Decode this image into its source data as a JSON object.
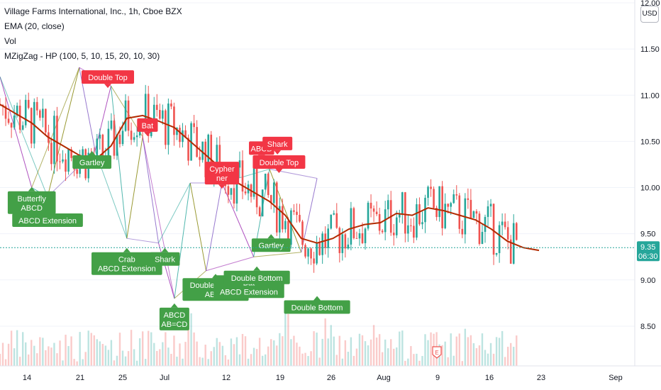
{
  "legend": {
    "symbol": "Village Farms International, Inc., 1h, Cboe BZX",
    "ema": "EMA (20, close)",
    "vol": "Vol",
    "zigzag": "MZigZag - HP (100, 5, 10, 15, 20, 10, 30)"
  },
  "currency": "USD",
  "colors": {
    "up": "#26a69a",
    "down": "#ef5350",
    "ema": "#b22a00",
    "pattern_bull": "#43a047",
    "pattern_bear": "#f23645"
  },
  "chart_data": {
    "type": "candlestick",
    "y_axis": {
      "min": 8.3,
      "max": 12.0,
      "ticks": [
        "12.00",
        "11.50",
        "11.00",
        "10.50",
        "10.00",
        "9.50",
        "9.00",
        "8.50"
      ]
    },
    "x_axis": {
      "ticks": [
        "14",
        "21",
        "25",
        "Jul",
        "12",
        "19",
        "26",
        "Aug",
        "9",
        "16",
        "23",
        "Sep"
      ]
    },
    "last_price": {
      "value": "9.35",
      "countdown": "06:30"
    },
    "ema_path": [
      [
        0,
        10.9
      ],
      [
        0.5,
        10.85
      ],
      [
        1,
        10.8
      ],
      [
        2,
        10.7
      ],
      [
        3,
        10.55
      ],
      [
        4,
        10.45
      ],
      [
        5,
        10.35
      ],
      [
        6,
        10.3
      ],
      [
        7,
        10.45
      ],
      [
        8,
        10.75
      ],
      [
        9,
        10.78
      ],
      [
        10,
        10.72
      ],
      [
        11,
        10.65
      ],
      [
        12,
        10.5
      ],
      [
        13,
        10.35
      ],
      [
        14,
        10.2
      ],
      [
        15,
        10.05
      ],
      [
        16,
        9.95
      ],
      [
        17,
        9.85
      ],
      [
        18,
        9.7
      ],
      [
        19,
        9.45
      ],
      [
        20,
        9.4
      ],
      [
        21,
        9.45
      ],
      [
        22,
        9.55
      ],
      [
        23,
        9.6
      ],
      [
        24,
        9.62
      ],
      [
        25,
        9.72
      ],
      [
        26,
        9.7
      ],
      [
        27,
        9.78
      ],
      [
        28,
        9.75
      ],
      [
        29,
        9.7
      ],
      [
        30,
        9.65
      ],
      [
        31,
        9.55
      ],
      [
        32,
        9.42
      ],
      [
        33,
        9.35
      ],
      [
        34,
        9.32
      ]
    ],
    "zigzag_points": [
      [
        0,
        11.2
      ],
      [
        2,
        10.0
      ],
      [
        3,
        9.9
      ],
      [
        5,
        11.3
      ],
      [
        6,
        10.4
      ],
      [
        7,
        11.1
      ],
      [
        8,
        9.45
      ],
      [
        9,
        10.55
      ],
      [
        10,
        9.4
      ],
      [
        11,
        8.8
      ],
      [
        12,
        10.05
      ],
      [
        13,
        9.1
      ],
      [
        14,
        10.05
      ],
      [
        16,
        9.25
      ],
      [
        17,
        10.2
      ],
      [
        19,
        9.3
      ],
      [
        20,
        10.1
      ]
    ],
    "pattern_labels": [
      {
        "lines": [
          "Butterfly",
          "ABCD"
        ],
        "kind": "bull",
        "x": 2.0,
        "y": 9.96
      },
      {
        "lines": [
          "ABCD Extension"
        ],
        "kind": "bull",
        "x": 3.0,
        "y": 9.72
      },
      {
        "lines": [
          "Gartley"
        ],
        "kind": "bull",
        "x": 5.8,
        "y": 10.35
      },
      {
        "lines": [
          "Double Top"
        ],
        "kind": "bear",
        "x": 6.8,
        "y": 11.27
      },
      {
        "lines": [
          "Bat"
        ],
        "kind": "bear",
        "x": 9.3,
        "y": 10.75
      },
      {
        "lines": [
          "Crab",
          "ABCD Extension"
        ],
        "kind": "bull",
        "x": 8.0,
        "y": 9.3
      },
      {
        "lines": [
          "Shark"
        ],
        "kind": "bull",
        "x": 10.4,
        "y": 9.3
      },
      {
        "lines": [
          "ABCD",
          "AB=CD"
        ],
        "kind": "bull",
        "x": 11.0,
        "y": 8.7
      },
      {
        "lines": [
          "Cypher",
          "ner"
        ],
        "kind": "bear",
        "x": 14.0,
        "y": 10.28
      },
      {
        "lines": [
          "Double Bottom",
          "ABCD"
        ],
        "kind": "bull",
        "x": 13.6,
        "y": 9.02
      },
      {
        "lines": [
          "Bat",
          "ABCD Extension"
        ],
        "kind": "bull",
        "x": 15.7,
        "y": 9.05
      },
      {
        "lines": [
          "Double Bottom"
        ],
        "kind": "bull",
        "x": 16.2,
        "y": 9.1
      },
      {
        "lines": [
          "ABCD"
        ],
        "kind": "bear",
        "x": 16.5,
        "y": 10.5
      },
      {
        "lines": [
          "Shark"
        ],
        "kind": "bear",
        "x": 17.5,
        "y": 10.55
      },
      {
        "lines": [
          "Double Top"
        ],
        "kind": "bear",
        "x": 17.6,
        "y": 10.35
      },
      {
        "lines": [
          "Gartley"
        ],
        "kind": "bull",
        "x": 17.1,
        "y": 9.45
      },
      {
        "lines": [
          "Double Bottom"
        ],
        "kind": "bull",
        "x": 20.0,
        "y": 8.78
      }
    ]
  }
}
